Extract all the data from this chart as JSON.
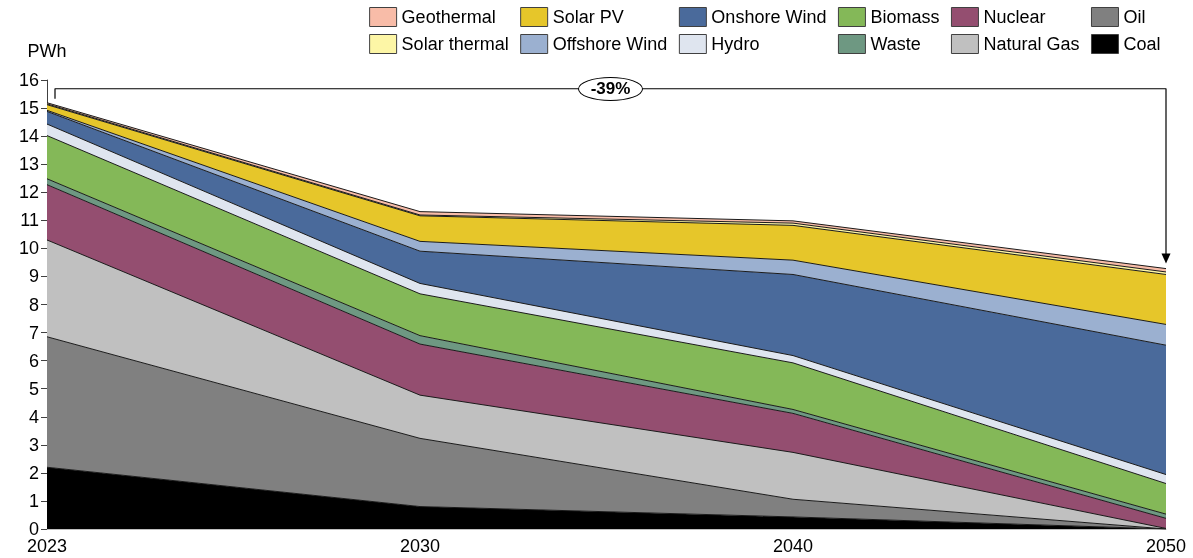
{
  "chart_data": {
    "type": "area",
    "stacked": true,
    "ylabel": "PWh",
    "categories": [
      "2023",
      "2030",
      "2040",
      "2050"
    ],
    "series": [
      {
        "name": "Coal",
        "color": "#000000",
        "values": [
          2.2,
          0.8,
          0.43,
          0
        ]
      },
      {
        "name": "Oil",
        "color": "#808080",
        "values": [
          4.65,
          2.43,
          0.63,
          0
        ]
      },
      {
        "name": "Natural Gas",
        "color": "#c0c0c0",
        "values": [
          3.45,
          1.54,
          1.67,
          0.02
        ]
      },
      {
        "name": "Nuclear",
        "color": "#944e70",
        "values": [
          1.97,
          1.82,
          1.39,
          0.36
        ]
      },
      {
        "name": "Waste",
        "color": "#6e9882",
        "values": [
          0.21,
          0.3,
          0.14,
          0.15
        ]
      },
      {
        "name": "Biomass",
        "color": "#84b858",
        "values": [
          1.54,
          1.49,
          1.66,
          1.09
        ]
      },
      {
        "name": "Hydro",
        "color": "#dfe5ef",
        "values": [
          0.41,
          0.37,
          0.26,
          0.32
        ]
      },
      {
        "name": "Onshore Wind",
        "color": "#4a6a9b",
        "values": [
          0.45,
          1.15,
          2.89,
          4.61
        ]
      },
      {
        "name": "Offshore Wind",
        "color": "#9bb0d0",
        "values": [
          0.04,
          0.35,
          0.51,
          0.74
        ]
      },
      {
        "name": "Solar PV",
        "color": "#e6c62a",
        "values": [
          0.2,
          0.91,
          1.24,
          1.78
        ]
      },
      {
        "name": "Solar thermal",
        "color": "#fdf6a6",
        "values": [
          0.03,
          0.03,
          0.08,
          0.09
        ]
      },
      {
        "name": "Geothermal",
        "color": "#f8bca8",
        "values": [
          0.04,
          0.12,
          0.08,
          0.12
        ]
      }
    ],
    "ylim": [
      0,
      16
    ],
    "yticks": [
      0,
      1,
      2,
      3,
      4,
      5,
      6,
      7,
      8,
      9,
      10,
      11,
      12,
      13,
      14,
      15,
      16
    ],
    "legend": "top right",
    "annotations": [
      "-39%"
    ]
  }
}
